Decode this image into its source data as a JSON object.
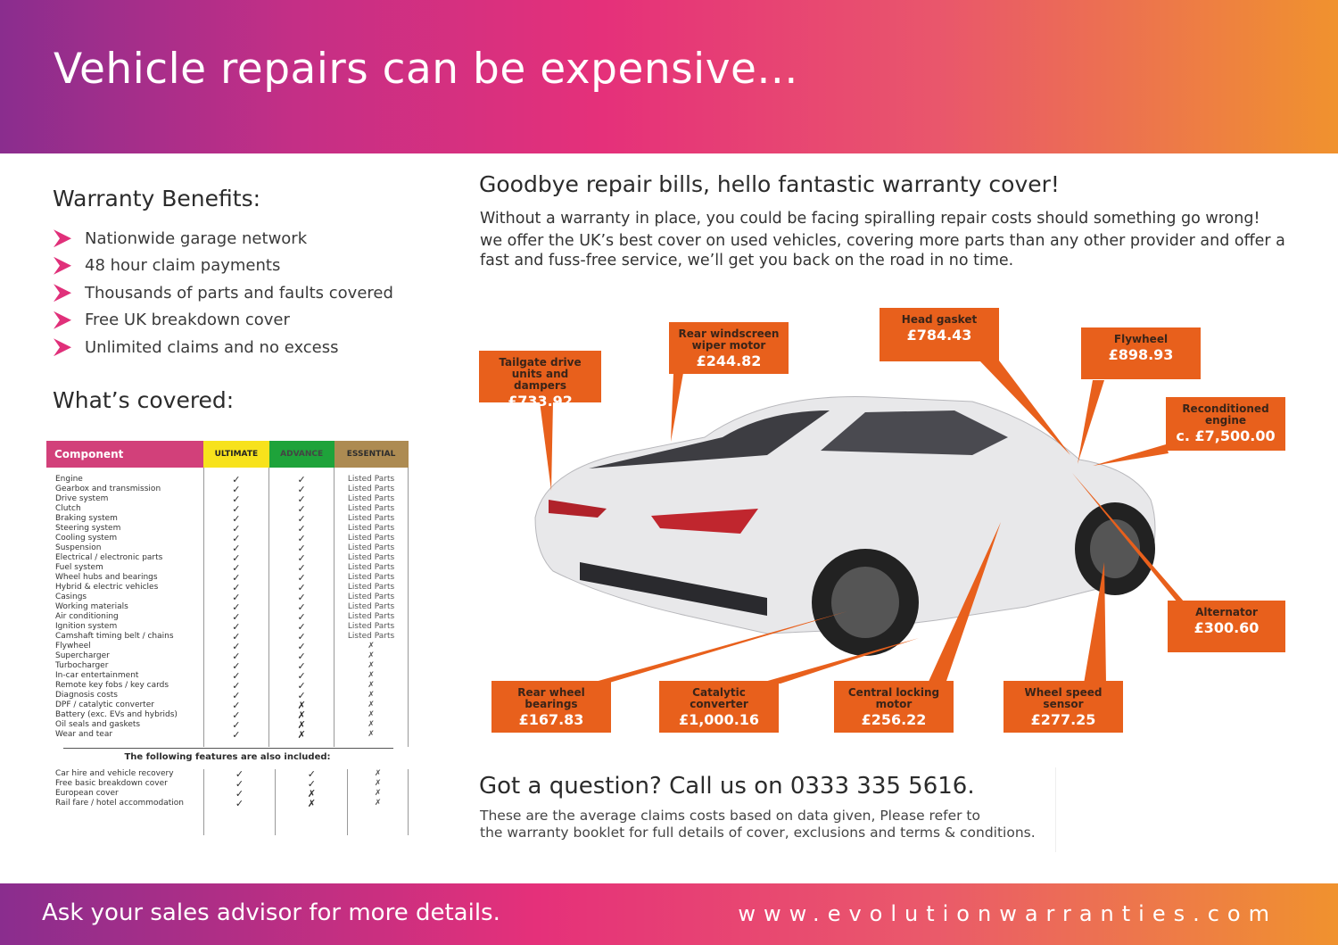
{
  "header": {
    "title": "Vehicle repairs can be expensive..."
  },
  "benefits": {
    "title": "Warranty Benefits:",
    "items": [
      "Nationwide garage network",
      "48 hour claim payments",
      "Thousands of parts and faults covered",
      "Free UK breakdown cover",
      "Unlimited claims and no excess"
    ]
  },
  "covered": {
    "title": "What’s covered:",
    "columns": [
      "Component",
      "ULTIMATE",
      "ADVANCE",
      "ESSENTIAL"
    ],
    "column_colors": {
      "component": "#d2407a",
      "ultimate": "#f7e21c",
      "advance": "#1ea33a",
      "essential": "#ad8b52"
    },
    "rows": [
      [
        "Engine",
        "✓",
        "✓",
        "Listed Parts"
      ],
      [
        "Gearbox and transmission",
        "✓",
        "✓",
        "Listed Parts"
      ],
      [
        "Drive system",
        "✓",
        "✓",
        "Listed Parts"
      ],
      [
        "Clutch",
        "✓",
        "✓",
        "Listed Parts"
      ],
      [
        "Braking system",
        "✓",
        "✓",
        "Listed Parts"
      ],
      [
        "Steering system",
        "✓",
        "✓",
        "Listed Parts"
      ],
      [
        "Cooling system",
        "✓",
        "✓",
        "Listed Parts"
      ],
      [
        "Suspension",
        "✓",
        "✓",
        "Listed Parts"
      ],
      [
        "Electrical / electronic parts",
        "✓",
        "✓",
        "Listed Parts"
      ],
      [
        "Fuel system",
        "✓",
        "✓",
        "Listed Parts"
      ],
      [
        "Wheel hubs and bearings",
        "✓",
        "✓",
        "Listed Parts"
      ],
      [
        "Hybrid & electric vehicles",
        "✓",
        "✓",
        "Listed Parts"
      ],
      [
        "Casings",
        "✓",
        "✓",
        "Listed Parts"
      ],
      [
        "Working materials",
        "✓",
        "✓",
        "Listed Parts"
      ],
      [
        "Air conditioning",
        "✓",
        "✓",
        "Listed Parts"
      ],
      [
        "Ignition system",
        "✓",
        "✓",
        "Listed Parts"
      ],
      [
        "Camshaft timing belt / chains",
        "✓",
        "✓",
        "Listed Parts"
      ],
      [
        "Flywheel",
        "✓",
        "✓",
        "✗"
      ],
      [
        "Supercharger",
        "✓",
        "✓",
        "✗"
      ],
      [
        "Turbocharger",
        "✓",
        "✓",
        "✗"
      ],
      [
        "In-car entertainment",
        "✓",
        "✓",
        "✗"
      ],
      [
        "Remote key fobs / key cards",
        "✓",
        "✓",
        "✗"
      ],
      [
        "Diagnosis costs",
        "✓",
        "✓",
        "✗"
      ],
      [
        "DPF / catalytic converter",
        "✓",
        "✗",
        "✗"
      ],
      [
        "Battery (exc. EVs and hybrids)",
        "✓",
        "✗",
        "✗"
      ],
      [
        "Oil seals and gaskets",
        "✓",
        "✗",
        "✗"
      ],
      [
        "Wear and tear",
        "✓",
        "✗",
        "✗"
      ]
    ],
    "features_title": "The following features are also included:",
    "features": [
      [
        "Car hire and vehicle recovery",
        "✓",
        "✓",
        "✗"
      ],
      [
        "Free basic breakdown cover",
        "✓",
        "✓",
        "✗"
      ],
      [
        "European cover",
        "✓",
        "✗",
        "✗"
      ],
      [
        "Rail fare / hotel accommodation",
        "✓",
        "✗",
        "✗"
      ]
    ]
  },
  "main": {
    "heading": "Goodbye repair bills, hello fantastic warranty cover!",
    "intro": [
      "Without a warranty in place, you could be facing spiralling repair costs should something go wrong!",
      "we offer the UK’s best cover on used vehicles, covering more parts than any other provider and offer a fast and fuss-free service, we’ll get you back on the road in no time."
    ],
    "callout_color": "#e8601c",
    "callouts": [
      {
        "label": "Tailgate drive units and dampers",
        "price": "£733.92"
      },
      {
        "label": "Rear windscreen wiper motor",
        "price": "£244.82"
      },
      {
        "label": "Head gasket",
        "price": "£784.43"
      },
      {
        "label": "Flywheel",
        "price": "£898.93"
      },
      {
        "label": "Reconditioned engine",
        "price": "c. £7,500.00"
      },
      {
        "label": "Alternator",
        "price": "£300.60"
      },
      {
        "label": "Rear wheel bearings",
        "price": "£167.83"
      },
      {
        "label": "Catalytic converter",
        "price": "£1,000.16"
      },
      {
        "label": "Central locking motor",
        "price": "£256.22"
      },
      {
        "label": "Wheel speed sensor",
        "price": "£277.25"
      }
    ],
    "question": "Got a question? Call us on 0333 335 5616.",
    "note": [
      "These are the average claims costs based on data given, Please refer to",
      "the warranty booklet for full details of cover, exclusions and terms & conditions."
    ]
  },
  "footer": {
    "left": "Ask your sales advisor for more details.",
    "right": "www.evolutionwarranties.com"
  }
}
